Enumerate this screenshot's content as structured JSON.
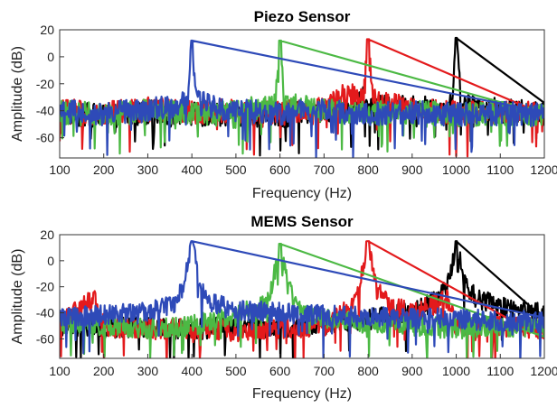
{
  "chart_data": [
    {
      "type": "line",
      "title": "Piezo Sensor",
      "xlabel": "Frequency (Hz)",
      "ylabel": "Amplitude (dB)",
      "xlim": [
        100,
        1200
      ],
      "ylim": [
        -75,
        20
      ],
      "x_ticks": [
        100,
        200,
        300,
        400,
        500,
        600,
        700,
        800,
        900,
        1000,
        1100,
        1200
      ],
      "y_ticks": [
        20,
        0,
        -20,
        -40,
        -60
      ],
      "grid": false,
      "series": [
        {
          "color": "#000000",
          "peak_freq": 1000,
          "peak_db": 14,
          "noise_floor_db": -42,
          "x": [
            100,
            200,
            300,
            400,
            500,
            600,
            700,
            770,
            780,
            800,
            900,
            980,
            990,
            1000,
            1010,
            1020,
            1100,
            1200
          ],
          "y": [
            -42,
            -44,
            -41,
            -43,
            -42,
            -44,
            -40,
            -38,
            -26,
            -38,
            -37,
            -38,
            -30,
            14,
            -30,
            -36,
            -40,
            -42
          ]
        },
        {
          "color": "#e31a1c",
          "peak_freq": 800,
          "peak_db": 13,
          "noise_floor_db": -40,
          "x": [
            100,
            200,
            300,
            400,
            500,
            600,
            700,
            760,
            790,
            800,
            810,
            900,
            1000,
            1100,
            1200
          ],
          "y": [
            -40,
            -42,
            -39,
            -41,
            -40,
            -42,
            -38,
            -26,
            -32,
            13,
            -32,
            -39,
            -41,
            -42,
            -41
          ]
        },
        {
          "color": "#4cb944",
          "peak_freq": 600,
          "peak_db": 12,
          "noise_floor_db": -41,
          "x": [
            100,
            200,
            300,
            400,
            500,
            590,
            600,
            610,
            700,
            800,
            900,
            1000,
            1100,
            1200
          ],
          "y": [
            -41,
            -43,
            -40,
            -42,
            -41,
            -34,
            12,
            -34,
            -40,
            -42,
            -41,
            -43,
            -42,
            -44
          ]
        },
        {
          "color": "#2e4ab8",
          "peak_freq": 400,
          "peak_db": 12,
          "noise_floor_db": -41,
          "x": [
            100,
            200,
            300,
            390,
            400,
            410,
            500,
            600,
            700,
            800,
            900,
            1000,
            1100,
            1200
          ],
          "y": [
            -41,
            -42,
            -40,
            -34,
            12,
            -34,
            -40,
            -42,
            -40,
            -42,
            -41,
            -43,
            -42,
            -43
          ]
        }
      ]
    },
    {
      "type": "line",
      "title": "MEMS Sensor",
      "xlabel": "Frequency (Hz)",
      "ylabel": "Amplitude (dB)",
      "xlim": [
        100,
        1200
      ],
      "ylim": [
        -75,
        20
      ],
      "x_ticks": [
        100,
        200,
        300,
        400,
        500,
        600,
        700,
        800,
        900,
        1000,
        1100,
        1200
      ],
      "y_ticks": [
        20,
        0,
        -20,
        -40,
        -60
      ],
      "grid": false,
      "series": [
        {
          "color": "#000000",
          "peak_freq": 1000,
          "peak_db": 15,
          "noise_floor_db": -50,
          "x": [
            100,
            200,
            300,
            400,
            500,
            600,
            700,
            800,
            900,
            960,
            980,
            1000,
            1020,
            1050,
            1100,
            1200
          ],
          "y": [
            -50,
            -52,
            -51,
            -53,
            -50,
            -52,
            -49,
            -45,
            -40,
            -30,
            -20,
            15,
            -20,
            -30,
            -35,
            -40
          ]
        },
        {
          "color": "#e31a1c",
          "peak_freq": 800,
          "peak_db": 15,
          "noise_floor_db": -52,
          "x": [
            100,
            180,
            200,
            300,
            400,
            500,
            600,
            700,
            760,
            780,
            800,
            820,
            850,
            900,
            980,
            1000,
            1100,
            1200
          ],
          "y": [
            -48,
            -28,
            -50,
            -53,
            -52,
            -54,
            -52,
            -50,
            -35,
            -22,
            15,
            -22,
            -35,
            -40,
            -30,
            -50,
            -50,
            -52
          ]
        },
        {
          "color": "#4cb944",
          "peak_freq": 600,
          "peak_db": 13,
          "noise_floor_db": -52,
          "x": [
            100,
            200,
            300,
            400,
            500,
            560,
            580,
            600,
            620,
            640,
            700,
            800,
            900,
            1000,
            1100,
            1200
          ],
          "y": [
            -48,
            -50,
            -52,
            -50,
            -42,
            -35,
            -22,
            13,
            -22,
            -35,
            -45,
            -48,
            -50,
            -52,
            -50,
            -52
          ]
        },
        {
          "color": "#2e4ab8",
          "peak_freq": 400,
          "peak_db": 15,
          "noise_floor_db": -44,
          "x": [
            100,
            200,
            300,
            360,
            380,
            400,
            420,
            440,
            500,
            600,
            700,
            800,
            900,
            1000,
            1100,
            1200
          ],
          "y": [
            -44,
            -42,
            -40,
            -32,
            -20,
            15,
            -20,
            -32,
            -38,
            -40,
            -42,
            -43,
            -44,
            -45,
            -46,
            -47
          ]
        }
      ]
    }
  ]
}
